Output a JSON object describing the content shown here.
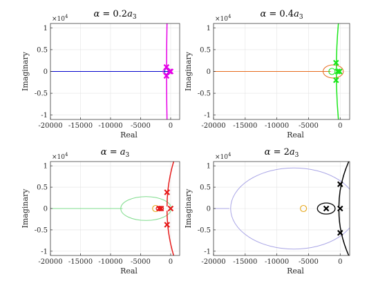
{
  "chart_data": [
    {
      "type": "root-locus",
      "title": {
        "prefix": "α = ",
        "value": "0.2",
        "suffix": "a",
        "sub": "3"
      },
      "xlabel": "Real",
      "ylabel": "Imaginary",
      "y_multiplier": {
        "base": "×10",
        "exp": "4"
      },
      "xlim": [
        -20000,
        1500
      ],
      "ylim": [
        -1.1,
        1.1
      ],
      "xticks": [
        -20000,
        -15000,
        -10000,
        -5000,
        0
      ],
      "yticks": [
        -1,
        -0.5,
        0,
        0.5,
        1
      ],
      "xticklabels": [
        "-20000",
        "-15000",
        "-10000",
        "-5000",
        "0"
      ],
      "yticklabels": [
        "-1",
        "-0.5",
        "0",
        "0.5",
        "1"
      ],
      "grid": true,
      "colors": {
        "branch": "#e600e6",
        "real_branch": "#0000cc",
        "marker": "#e600e6"
      },
      "real_branch": {
        "from": -20000,
        "to": 0
      },
      "loop": {
        "center_x": -550,
        "radius_x": 450,
        "radius_y": 0.08
      },
      "asymptote": {
        "x_bottom": -600,
        "x_mid": -680,
        "x_top": -600
      },
      "poles": [
        {
          "x": -700,
          "y": 0.1
        },
        {
          "x": -700,
          "y": -0.1
        },
        {
          "x": -200,
          "y": 0
        },
        {
          "x": 0,
          "y": 0
        }
      ],
      "zeros": [
        {
          "x": -750,
          "y": 0
        }
      ]
    },
    {
      "type": "root-locus",
      "title": {
        "prefix": "α = ",
        "value": "0.4",
        "suffix": "a",
        "sub": "3"
      },
      "xlabel": "Real",
      "ylabel": "Imaginary",
      "y_multiplier": {
        "base": "×10",
        "exp": "4"
      },
      "xlim": [
        -20000,
        1500
      ],
      "ylim": [
        -1.1,
        1.1
      ],
      "xticks": [
        -20000,
        -15000,
        -10000,
        -5000,
        0
      ],
      "yticks": [
        -1,
        -0.5,
        0,
        0.5,
        1
      ],
      "xticklabels": [
        "-20000",
        "-15000",
        "-10000",
        "-5000",
        "0"
      ],
      "yticklabels": [
        "-1",
        "-0.5",
        "0",
        "0.5",
        "1"
      ],
      "grid": true,
      "colors": {
        "branch": "#19e619",
        "real_branch": "#e66a1a",
        "marker": "#19e619"
      },
      "real_branch": {
        "from": -20000,
        "to": -1500
      },
      "loop": {
        "center_x": -1100,
        "radius_x": 1600,
        "radius_y": 0.15
      },
      "asymptote": {
        "x_bottom": -250,
        "x_mid": -600,
        "x_top": -250
      },
      "poles": [
        {
          "x": -650,
          "y": 0.2
        },
        {
          "x": -650,
          "y": -0.2
        },
        {
          "x": -400,
          "y": 0
        },
        {
          "x": -100,
          "y": 0
        }
      ],
      "zeros": [
        {
          "x": -1300,
          "y": 0
        }
      ]
    },
    {
      "type": "root-locus",
      "title": {
        "prefix": "α = ",
        "value": "",
        "suffix": "a",
        "sub": "3"
      },
      "xlabel": "Real",
      "ylabel": "Imaginary",
      "y_multiplier": {
        "base": "×10",
        "exp": "4"
      },
      "xlim": [
        -20000,
        1500
      ],
      "ylim": [
        -1.1,
        1.1
      ],
      "xticks": [
        -20000,
        -15000,
        -10000,
        -5000,
        0
      ],
      "yticks": [
        -1,
        -0.5,
        0,
        0.5,
        1
      ],
      "xticklabels": [
        "-20000",
        "-15000",
        "-10000",
        "-5000",
        "0"
      ],
      "yticklabels": [
        "-1",
        "-0.5",
        "0",
        "0.5",
        "1"
      ],
      "grid": true,
      "colors": {
        "branch": "#e61919",
        "real_branch": "#7fdc8c",
        "marker": "#e61919",
        "inner": "#e61919",
        "zero": "#e6a619"
      },
      "real_branch": {
        "from": -20000,
        "to": -8000
      },
      "loop": {
        "center_x": -4100,
        "radius_x": 4200,
        "radius_y": 0.28
      },
      "inner_loop": {
        "center_x": -1800,
        "radius_x": 600,
        "radius_y": 0.05
      },
      "asymptote": {
        "x_bottom": 600,
        "x_mid": -600,
        "x_top": 600
      },
      "poles": [
        {
          "x": -600,
          "y": 0.38
        },
        {
          "x": -600,
          "y": -0.38
        },
        {
          "x": -1600,
          "y": 0
        },
        {
          "x": -1900,
          "y": 0
        },
        {
          "x": 0,
          "y": 0
        }
      ],
      "zeros": [
        {
          "x": -2500,
          "y": 0
        }
      ]
    },
    {
      "type": "root-locus",
      "title": {
        "prefix": "α = ",
        "value": "2",
        "suffix": "a",
        "sub": "3"
      },
      "xlabel": "Real",
      "ylabel": "Imaginary",
      "y_multiplier": {
        "base": "×10",
        "exp": "4"
      },
      "xlim": [
        -20000,
        1500
      ],
      "ylim": [
        -1.1,
        1.1
      ],
      "xticks": [
        -20000,
        -15000,
        -10000,
        -5000,
        0
      ],
      "yticks": [
        -1,
        -0.5,
        0,
        0.5,
        1
      ],
      "xticklabels": [
        "-20000",
        "-15000",
        "-10000",
        "-5000",
        "0"
      ],
      "yticklabels": [
        "-1",
        "-0.5",
        "0",
        "0.5",
        "1"
      ],
      "grid": true,
      "colors": {
        "branch": "#000000",
        "real_branch": "#a9a5e6",
        "marker": "#000000",
        "inner": "#000000",
        "zero": "#e6a619"
      },
      "real_branch": {
        "from": -20000,
        "to": -17500
      },
      "loop": {
        "center_x": -7300,
        "radius_x": 10000,
        "radius_y": 0.95
      },
      "inner_loop": {
        "center_x": -2200,
        "radius_x": 1400,
        "radius_y": 0.13
      },
      "asymptote": {
        "x_bottom": 1500,
        "x_mid": -200,
        "x_top": 1500
      },
      "poles": [
        {
          "x": 0,
          "y": 0.57
        },
        {
          "x": 0,
          "y": -0.57
        },
        {
          "x": -2200,
          "y": 0
        },
        {
          "x": 0,
          "y": 0
        }
      ],
      "zeros": [
        {
          "x": -5800,
          "y": 0
        }
      ]
    }
  ]
}
